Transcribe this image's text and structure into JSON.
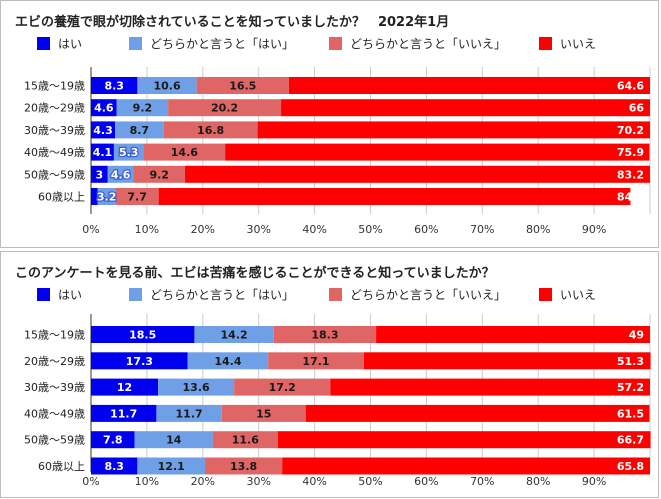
{
  "chart_data": [
    {
      "type": "bar",
      "orientation": "horizontal",
      "stacked": true,
      "title": "エビの養殖で眼が切除されていることを知っていましたか？　2022年1月",
      "categories": [
        "15歳〜19歳",
        "20歳〜29歳",
        "30歳〜39歳",
        "40歳〜49歳",
        "50歳〜59歳",
        "60歳以上"
      ],
      "series": [
        {
          "name": "はい",
          "color": "#0000ee",
          "values": [
            8.3,
            4.6,
            4.3,
            4.1,
            3,
            1.2
          ]
        },
        {
          "name": "どちらかと言うと「はい」",
          "color": "#6f9fe6",
          "values": [
            10.6,
            9.2,
            8.7,
            5.3,
            4.6,
            3.2
          ]
        },
        {
          "name": "どちらかと言うと「いいえ」",
          "color": "#e06666",
          "values": [
            16.5,
            20.2,
            16.8,
            14.6,
            9.2,
            7.7
          ]
        },
        {
          "name": "いいえ",
          "color": "#ff0000",
          "values": [
            64.6,
            66,
            70.2,
            75.9,
            83.2,
            84.4
          ]
        }
      ],
      "xlim": [
        0,
        100
      ],
      "x_ticks": [
        "0%",
        "10%",
        "20%",
        "30%",
        "40%",
        "50%",
        "60%",
        "70%",
        "80%",
        "90%"
      ],
      "hidden_labels": [
        [
          5,
          0
        ]
      ],
      "grid": true,
      "legend_position": "top"
    },
    {
      "type": "bar",
      "orientation": "horizontal",
      "stacked": true,
      "title": "このアンケートを見る前、エビは苦痛を感じることができると知っていましたか？",
      "categories": [
        "15歳〜19歳",
        "20歳〜29歳",
        "30歳〜39歳",
        "40歳〜49歳",
        "50歳〜59歳",
        "60歳以上"
      ],
      "series": [
        {
          "name": "はい",
          "color": "#0000ee",
          "values": [
            18.5,
            17.3,
            12,
            11.7,
            7.8,
            8.3
          ]
        },
        {
          "name": "どちらかと言うと「はい」",
          "color": "#6f9fe6",
          "values": [
            14.2,
            14.4,
            13.6,
            11.7,
            14,
            12.1
          ]
        },
        {
          "name": "どちらかと言うと「いいえ」",
          "color": "#e06666",
          "values": [
            18.3,
            17.1,
            17.2,
            15,
            11.6,
            13.8
          ]
        },
        {
          "name": "いいえ",
          "color": "#ff0000",
          "values": [
            49,
            51.3,
            57.2,
            61.5,
            66.7,
            65.8
          ]
        }
      ],
      "xlim": [
        0,
        100
      ],
      "x_ticks": [
        "0%",
        "10%",
        "20%",
        "30%",
        "40%",
        "50%",
        "60%",
        "70%",
        "80%",
        "90%"
      ],
      "hidden_labels": [],
      "grid": true,
      "legend_position": "top"
    }
  ]
}
